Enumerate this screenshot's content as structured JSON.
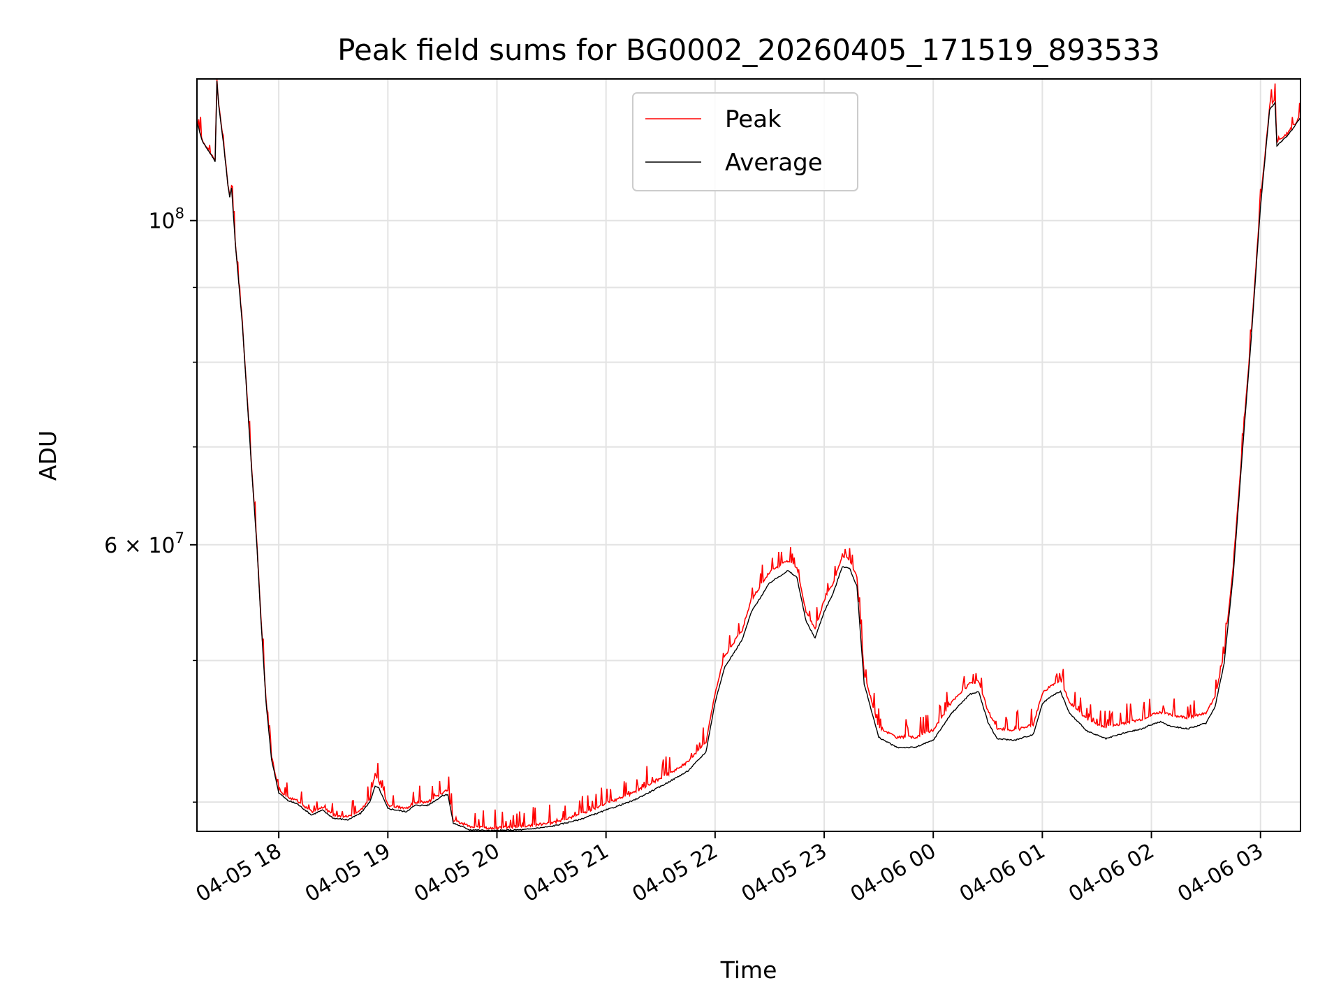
{
  "chart_data": {
    "type": "line",
    "title": "Peak field sums for BG0002_20260405_171519_893533",
    "xlabel": "Time",
    "ylabel": "ADU",
    "y_scale": "log",
    "grid": true,
    "legend_placement": "top-center",
    "x_range": [
      "04-05 17:15",
      "04-06 03:22"
    ],
    "ylim": [
      38200000,
      125000000
    ],
    "x_ticks": [
      "04-05 18",
      "04-05 19",
      "04-05 20",
      "04-05 21",
      "04-05 22",
      "04-05 23",
      "04-06 00",
      "04-06 01",
      "04-06 02",
      "04-06 03"
    ],
    "y_major_ticks": [
      {
        "value": 100000000,
        "base": "10",
        "exp": "8",
        "mult": ""
      },
      {
        "value": 60000000,
        "base": "10",
        "exp": "7",
        "mult": "6 × "
      }
    ],
    "y_minor_ticks": [
      40000000,
      50000000,
      70000000,
      80000000,
      90000000
    ],
    "series": [
      {
        "name": "Peak",
        "color": "#ff0000",
        "points": [
          [
            "04-05 17:15",
            117000000
          ],
          [
            "04-05 17:18",
            113500000
          ],
          [
            "04-05 17:22",
            111500000
          ],
          [
            "04-05 17:25",
            110000000
          ],
          [
            "04-05 17:26",
            125000000
          ],
          [
            "04-05 17:27",
            120000000
          ],
          [
            "04-05 17:30",
            112000000
          ],
          [
            "04-05 17:32",
            106000000
          ],
          [
            "04-05 17:33",
            104000000
          ],
          [
            "04-05 17:34",
            105500000
          ],
          [
            "04-05 17:36",
            97000000
          ],
          [
            "04-05 17:40",
            85000000
          ],
          [
            "04-05 17:45",
            68000000
          ],
          [
            "04-05 17:48",
            60000000
          ],
          [
            "04-05 17:50",
            54000000
          ],
          [
            "04-05 17:53",
            47000000
          ],
          [
            "04-05 17:56",
            43000000
          ],
          [
            "04-05 18:00",
            40800000
          ],
          [
            "04-05 18:05",
            40300000
          ],
          [
            "04-05 18:10",
            40100000
          ],
          [
            "04-05 18:18",
            39400000
          ],
          [
            "04-05 18:24",
            39700000
          ],
          [
            "04-05 18:30",
            39200000
          ],
          [
            "04-05 18:38",
            39100000
          ],
          [
            "04-05 18:45",
            39500000
          ],
          [
            "04-05 18:50",
            40200000
          ],
          [
            "04-05 18:53",
            41800000
          ],
          [
            "04-05 18:55",
            41300000
          ],
          [
            "04-05 19:00",
            39800000
          ],
          [
            "04-05 19:10",
            39600000
          ],
          [
            "04-05 19:15",
            40000000
          ],
          [
            "04-05 19:22",
            40000000
          ],
          [
            "04-05 19:30",
            40600000
          ],
          [
            "04-05 19:33",
            40800000
          ],
          [
            "04-05 19:36",
            38900000
          ],
          [
            "04-05 19:45",
            38500000
          ],
          [
            "04-05 19:55",
            38400000
          ],
          [
            "04-05 20:00",
            38400000
          ],
          [
            "04-05 20:15",
            38500000
          ],
          [
            "04-05 20:30",
            38700000
          ],
          [
            "04-05 20:45",
            39200000
          ],
          [
            "04-05 21:00",
            39900000
          ],
          [
            "04-05 21:15",
            40600000
          ],
          [
            "04-05 21:30",
            41500000
          ],
          [
            "04-05 21:45",
            42600000
          ],
          [
            "04-05 21:55",
            44000000
          ],
          [
            "04-05 22:00",
            47500000
          ],
          [
            "04-05 22:05",
            50300000
          ],
          [
            "04-05 22:15",
            52500000
          ],
          [
            "04-05 22:20",
            55000000
          ],
          [
            "04-05 22:30",
            57500000
          ],
          [
            "04-05 22:40",
            58500000
          ],
          [
            "04-05 22:45",
            57800000
          ],
          [
            "04-05 22:50",
            54000000
          ],
          [
            "04-05 22:55",
            52500000
          ],
          [
            "04-05 23:00",
            55000000
          ],
          [
            "04-05 23:05",
            56500000
          ],
          [
            "04-05 23:10",
            59000000
          ],
          [
            "04-05 23:14",
            58600000
          ],
          [
            "04-05 23:18",
            57000000
          ],
          [
            "04-05 23:22",
            49000000
          ],
          [
            "04-05 23:30",
            45000000
          ],
          [
            "04-05 23:40",
            44300000
          ],
          [
            "04-05 23:50",
            44300000
          ],
          [
            "04-06 00:00",
            44800000
          ],
          [
            "04-06 00:10",
            46800000
          ],
          [
            "04-06 00:20",
            48200000
          ],
          [
            "04-06 00:25",
            48400000
          ],
          [
            "04-06 00:30",
            46200000
          ],
          [
            "04-06 00:35",
            44900000
          ],
          [
            "04-06 00:45",
            44800000
          ],
          [
            "04-06 00:55",
            45200000
          ],
          [
            "04-06 01:00",
            47500000
          ],
          [
            "04-06 01:05",
            48100000
          ],
          [
            "04-06 01:10",
            48500000
          ],
          [
            "04-06 01:15",
            46800000
          ],
          [
            "04-06 01:25",
            45500000
          ],
          [
            "04-06 01:35",
            45000000
          ],
          [
            "04-06 01:45",
            45300000
          ],
          [
            "04-06 01:55",
            45600000
          ],
          [
            "04-06 02:00",
            45900000
          ],
          [
            "04-06 02:05",
            46100000
          ],
          [
            "04-06 02:10",
            45900000
          ],
          [
            "04-06 02:20",
            45700000
          ],
          [
            "04-06 02:30",
            46000000
          ],
          [
            "04-06 02:35",
            47200000
          ],
          [
            "04-06 02:40",
            50500000
          ],
          [
            "04-06 02:45",
            58000000
          ],
          [
            "04-06 02:50",
            70000000
          ],
          [
            "04-06 02:55",
            84000000
          ],
          [
            "04-06 03:00",
            103000000
          ],
          [
            "04-06 03:05",
            119500000
          ],
          [
            "04-06 03:08",
            121000000
          ],
          [
            "04-06 03:09",
            113000000
          ],
          [
            "04-06 03:15",
            114800000
          ],
          [
            "04-06 03:20",
            117000000
          ],
          [
            "04-06 03:22",
            118000000
          ]
        ]
      },
      {
        "name": "Average",
        "color": "#000000",
        "points": [
          [
            "04-05 17:15",
            116800000
          ],
          [
            "04-05 17:18",
            113300000
          ],
          [
            "04-05 17:22",
            111300000
          ],
          [
            "04-05 17:25",
            109800000
          ],
          [
            "04-05 17:26",
            124600000
          ],
          [
            "04-05 17:27",
            119800000
          ],
          [
            "04-05 17:30",
            111800000
          ],
          [
            "04-05 17:32",
            105800000
          ],
          [
            "04-05 17:33",
            103800000
          ],
          [
            "04-05 17:34",
            105300000
          ],
          [
            "04-05 17:36",
            96800000
          ],
          [
            "04-05 17:40",
            84800000
          ],
          [
            "04-05 17:45",
            67800000
          ],
          [
            "04-05 17:48",
            59800000
          ],
          [
            "04-05 17:50",
            53800000
          ],
          [
            "04-05 17:53",
            46800000
          ],
          [
            "04-05 17:56",
            42800000
          ],
          [
            "04-05 18:00",
            40600000
          ],
          [
            "04-05 18:05",
            40100000
          ],
          [
            "04-05 18:10",
            39900000
          ],
          [
            "04-05 18:18",
            39200000
          ],
          [
            "04-05 18:24",
            39500000
          ],
          [
            "04-05 18:30",
            39000000
          ],
          [
            "04-05 18:38",
            38900000
          ],
          [
            "04-05 18:45",
            39300000
          ],
          [
            "04-05 18:50",
            40000000
          ],
          [
            "04-05 18:53",
            41000000
          ],
          [
            "04-05 18:55",
            40900000
          ],
          [
            "04-05 19:00",
            39600000
          ],
          [
            "04-05 19:10",
            39400000
          ],
          [
            "04-05 19:15",
            39800000
          ],
          [
            "04-05 19:22",
            39800000
          ],
          [
            "04-05 19:30",
            40400000
          ],
          [
            "04-05 19:33",
            40500000
          ],
          [
            "04-05 19:36",
            38700000
          ],
          [
            "04-05 19:45",
            38300000
          ],
          [
            "04-05 19:55",
            38250000
          ],
          [
            "04-05 20:00",
            38250000
          ],
          [
            "04-05 20:15",
            38300000
          ],
          [
            "04-05 20:30",
            38500000
          ],
          [
            "04-05 20:45",
            38900000
          ],
          [
            "04-05 21:00",
            39500000
          ],
          [
            "04-05 21:15",
            40100000
          ],
          [
            "04-05 21:30",
            41000000
          ],
          [
            "04-05 21:45",
            42000000
          ],
          [
            "04-05 21:55",
            43300000
          ],
          [
            "04-05 22:00",
            46800000
          ],
          [
            "04-05 22:05",
            49400000
          ],
          [
            "04-05 22:15",
            51700000
          ],
          [
            "04-05 22:20",
            54000000
          ],
          [
            "04-05 22:30",
            56500000
          ],
          [
            "04-05 22:40",
            57600000
          ],
          [
            "04-05 22:45",
            57000000
          ],
          [
            "04-05 22:50",
            53200000
          ],
          [
            "04-05 22:55",
            51800000
          ],
          [
            "04-05 23:00",
            54000000
          ],
          [
            "04-05 23:05",
            55600000
          ],
          [
            "04-05 23:10",
            58000000
          ],
          [
            "04-05 23:14",
            57800000
          ],
          [
            "04-05 23:18",
            56200000
          ],
          [
            "04-05 23:22",
            48200000
          ],
          [
            "04-05 23:30",
            44300000
          ],
          [
            "04-05 23:40",
            43600000
          ],
          [
            "04-05 23:50",
            43600000
          ],
          [
            "04-06 00:00",
            44100000
          ],
          [
            "04-06 00:10",
            46000000
          ],
          [
            "04-06 00:20",
            47400000
          ],
          [
            "04-06 00:25",
            47600000
          ],
          [
            "04-06 00:30",
            45400000
          ],
          [
            "04-06 00:35",
            44200000
          ],
          [
            "04-06 00:45",
            44100000
          ],
          [
            "04-06 00:55",
            44500000
          ],
          [
            "04-06 01:00",
            46700000
          ],
          [
            "04-06 01:05",
            47300000
          ],
          [
            "04-06 01:10",
            47600000
          ],
          [
            "04-06 01:15",
            46000000
          ],
          [
            "04-06 01:25",
            44700000
          ],
          [
            "04-06 01:35",
            44200000
          ],
          [
            "04-06 01:45",
            44600000
          ],
          [
            "04-06 01:55",
            44900000
          ],
          [
            "04-06 02:00",
            45200000
          ],
          [
            "04-06 02:05",
            45400000
          ],
          [
            "04-06 02:10",
            45100000
          ],
          [
            "04-06 02:20",
            44900000
          ],
          [
            "04-06 02:30",
            45300000
          ],
          [
            "04-06 02:35",
            46500000
          ],
          [
            "04-06 02:40",
            49800000
          ],
          [
            "04-06 02:45",
            57200000
          ],
          [
            "04-06 02:50",
            69300000
          ],
          [
            "04-06 02:55",
            83300000
          ],
          [
            "04-06 03:00",
            102200000
          ],
          [
            "04-06 03:05",
            119000000
          ],
          [
            "04-06 03:08",
            120500000
          ],
          [
            "04-06 03:09",
            112500000
          ],
          [
            "04-06 03:15",
            114400000
          ],
          [
            "04-06 03:20",
            116600000
          ],
          [
            "04-06 03:22",
            117600000
          ]
        ]
      }
    ]
  }
}
